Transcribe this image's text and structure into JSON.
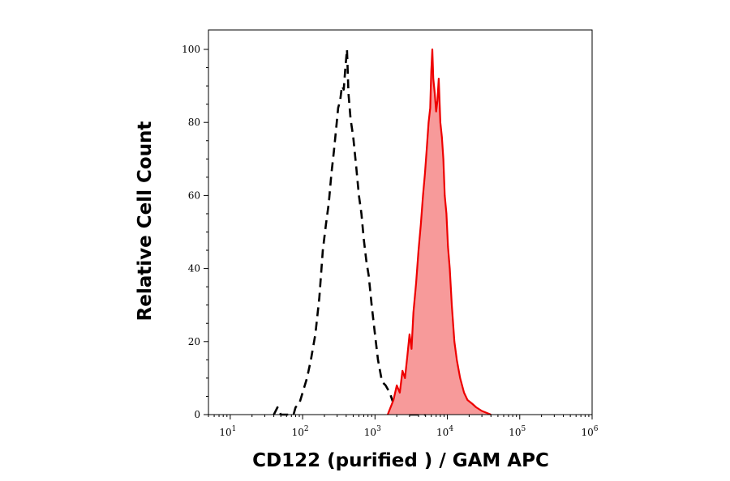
{
  "chart_data": {
    "type": "area",
    "title": "",
    "xlabel": "CD122 (purified ) / GAM APC",
    "ylabel": "Relative Cell Count",
    "x_scale": "log",
    "xlim": [
      5,
      1000000
    ],
    "ylim": [
      0,
      103
    ],
    "x_ticks": [
      {
        "value": 10,
        "base": "10",
        "exp": "1"
      },
      {
        "value": 100,
        "base": "10",
        "exp": "2"
      },
      {
        "value": 1000,
        "base": "10",
        "exp": "3"
      },
      {
        "value": 10000,
        "base": "10",
        "exp": "4"
      },
      {
        "value": 100000,
        "base": "10",
        "exp": "5"
      },
      {
        "value": 1000000,
        "base": "10",
        "exp": "6"
      }
    ],
    "y_ticks": [
      0,
      20,
      40,
      60,
      80,
      100
    ],
    "grid": false,
    "legend": "none",
    "series": [
      {
        "style": "dashed-outline",
        "color": "#000000",
        "points": [
          [
            40,
            0
          ],
          [
            45,
            2
          ],
          [
            50,
            0
          ],
          [
            60,
            0
          ],
          [
            75,
            0
          ],
          [
            80,
            2
          ],
          [
            90,
            3
          ],
          [
            100,
            6
          ],
          [
            115,
            10
          ],
          [
            130,
            15
          ],
          [
            150,
            22
          ],
          [
            170,
            32
          ],
          [
            190,
            45
          ],
          [
            210,
            52
          ],
          [
            230,
            58
          ],
          [
            250,
            66
          ],
          [
            270,
            72
          ],
          [
            290,
            78
          ],
          [
            310,
            84
          ],
          [
            330,
            86
          ],
          [
            350,
            90
          ],
          [
            370,
            89
          ],
          [
            390,
            95
          ],
          [
            410,
            100
          ],
          [
            430,
            88
          ],
          [
            460,
            81
          ],
          [
            500,
            76
          ],
          [
            550,
            68
          ],
          [
            600,
            60
          ],
          [
            650,
            55
          ],
          [
            700,
            48
          ],
          [
            760,
            42
          ],
          [
            820,
            38
          ],
          [
            900,
            30
          ],
          [
            1000,
            22
          ],
          [
            1100,
            15
          ],
          [
            1250,
            9
          ],
          [
            1400,
            8
          ],
          [
            1600,
            6
          ],
          [
            1800,
            3
          ],
          [
            2000,
            2
          ],
          [
            2300,
            1
          ],
          [
            2600,
            0
          ],
          [
            3000,
            0
          ],
          [
            4000,
            0
          ],
          [
            5000,
            0
          ]
        ]
      },
      {
        "style": "filled",
        "color": "#ee0000",
        "fill": "#f79a9a",
        "points": [
          [
            1500,
            0
          ],
          [
            1800,
            4
          ],
          [
            2000,
            8
          ],
          [
            2200,
            6
          ],
          [
            2400,
            12
          ],
          [
            2600,
            10
          ],
          [
            2800,
            16
          ],
          [
            3000,
            22
          ],
          [
            3200,
            18
          ],
          [
            3400,
            28
          ],
          [
            3700,
            36
          ],
          [
            4000,
            45
          ],
          [
            4300,
            52
          ],
          [
            4600,
            60
          ],
          [
            4900,
            66
          ],
          [
            5200,
            73
          ],
          [
            5500,
            80
          ],
          [
            5800,
            84
          ],
          [
            6000,
            94
          ],
          [
            6200,
            100
          ],
          [
            6400,
            92
          ],
          [
            6700,
            88
          ],
          [
            7000,
            83
          ],
          [
            7300,
            86
          ],
          [
            7600,
            92
          ],
          [
            8000,
            80
          ],
          [
            8400,
            76
          ],
          [
            8800,
            70
          ],
          [
            9200,
            60
          ],
          [
            9700,
            55
          ],
          [
            10200,
            46
          ],
          [
            10800,
            40
          ],
          [
            11500,
            30
          ],
          [
            12500,
            20
          ],
          [
            13500,
            15
          ],
          [
            15000,
            10
          ],
          [
            17000,
            6
          ],
          [
            19000,
            4
          ],
          [
            22000,
            3
          ],
          [
            25000,
            2
          ],
          [
            30000,
            1
          ],
          [
            40000,
            0
          ]
        ]
      }
    ]
  }
}
